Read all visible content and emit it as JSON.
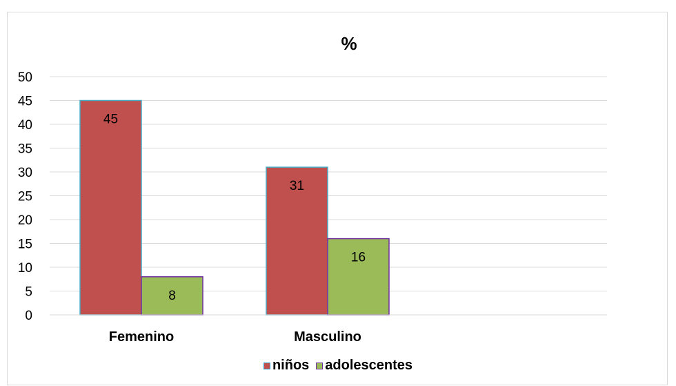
{
  "chart_data": {
    "type": "bar",
    "title": "%",
    "categories": [
      "Femenino",
      "Masculino"
    ],
    "series": [
      {
        "name": "niños",
        "values": [
          45,
          31
        ],
        "color": "#c0504d"
      },
      {
        "name": "adolescentes",
        "values": [
          8,
          16
        ],
        "color": "#9bbb59"
      }
    ],
    "ylim": [
      0,
      50
    ],
    "yticks": [
      "0",
      "5",
      "10",
      "15",
      "20",
      "25",
      "30",
      "35",
      "40",
      "45",
      "50"
    ],
    "data_labels": true,
    "grid": true,
    "legend": "bottom",
    "colors": {
      "gridline": "#d9d9d9",
      "bar_border": "#4bacc6",
      "alt_border": "#7030a0"
    }
  }
}
